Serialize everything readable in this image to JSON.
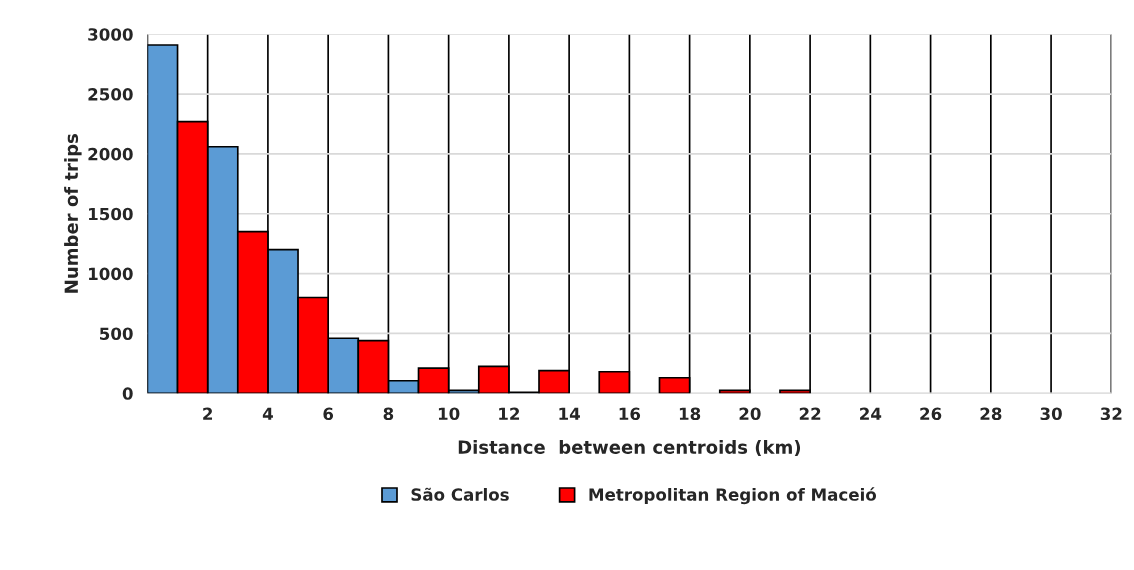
{
  "chart_data": {
    "type": "histogram",
    "xlabel": "Distance  between centroids (km)",
    "ylabel": "Number of trips",
    "bins": [
      0,
      2,
      4,
      6,
      8,
      10,
      12,
      14,
      16,
      18,
      20,
      22,
      24,
      26,
      28,
      30,
      32
    ],
    "series": [
      {
        "name": "São Carlos",
        "color": "#5b9bd5",
        "values": [
          2910,
          2060,
          1200,
          460,
          105,
          24,
          8,
          0,
          0,
          0,
          0,
          0,
          0,
          0,
          0,
          0
        ]
      },
      {
        "name": "Metropolitan Region of Maceió",
        "color": "#ff0000",
        "values": [
          2270,
          1350,
          800,
          440,
          210,
          225,
          190,
          180,
          130,
          25,
          25,
          null,
          null,
          null,
          null,
          0
        ]
      }
    ],
    "xlim": [
      0,
      32
    ],
    "xticks": [
      {
        "value": 0,
        "label": null
      },
      2,
      4,
      6,
      8,
      10,
      12,
      14,
      16,
      18,
      20,
      22,
      24,
      26,
      28,
      30,
      32
    ],
    "ylim": [
      0,
      3000
    ],
    "yticks": [
      0,
      500,
      1000,
      1500,
      2000,
      2500,
      3000
    ],
    "grid": true,
    "legend": "bottom"
  }
}
